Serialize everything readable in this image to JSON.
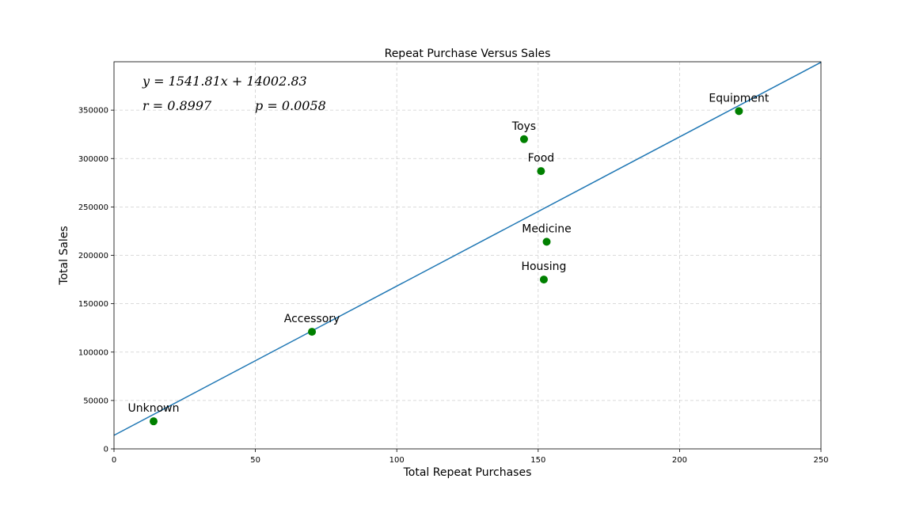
{
  "chart_data": {
    "type": "scatter",
    "title": "Repeat Purchase Versus Sales",
    "xlabel": "Total Repeat Purchases",
    "ylabel": "Total Sales",
    "xlim": [
      0,
      250
    ],
    "ylim": [
      0,
      400000
    ],
    "xticks": [
      0,
      50,
      100,
      150,
      200,
      250
    ],
    "yticks": [
      0,
      50000,
      100000,
      150000,
      200000,
      250000,
      300000,
      350000
    ],
    "grid": true,
    "points": [
      {
        "label": "Unknown",
        "x": 14,
        "y": 28500
      },
      {
        "label": "Accessory",
        "x": 70,
        "y": 121000
      },
      {
        "label": "Toys",
        "x": 145,
        "y": 320000
      },
      {
        "label": "Food",
        "x": 151,
        "y": 287000
      },
      {
        "label": "Medicine",
        "x": 153,
        "y": 214000
      },
      {
        "label": "Housing",
        "x": 152,
        "y": 175000
      },
      {
        "label": "Equipment",
        "x": 221,
        "y": 349000
      }
    ],
    "regression": {
      "slope": 1541.81,
      "intercept": 14002.83,
      "equation": "y = 1541.81x + 14002.83",
      "r_text": "r = 0.8997",
      "p_text": "p = 0.0058"
    },
    "point_color": "#008000",
    "line_color": "#1f77b4"
  }
}
